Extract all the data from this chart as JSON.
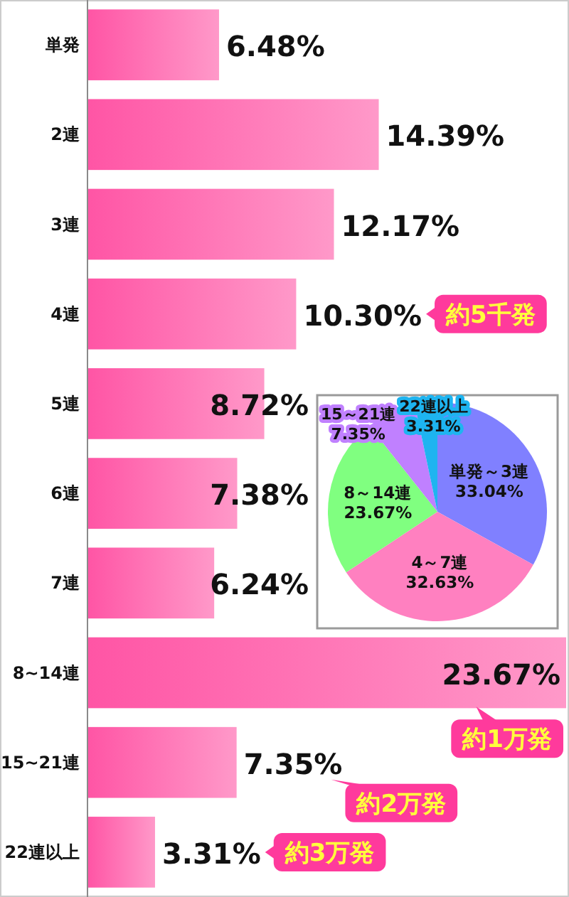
{
  "chart_data": [
    {
      "type": "bar",
      "orientation": "horizontal",
      "categories": [
        "単発",
        "2連",
        "3連",
        "4連",
        "5連",
        "6連",
        "7連",
        "8~14連",
        "15~21連",
        "22連以上"
      ],
      "values": [
        6.48,
        14.39,
        12.17,
        10.3,
        8.72,
        7.38,
        6.24,
        23.67,
        7.35,
        3.31
      ],
      "value_labels": [
        "6.48%",
        "14.39%",
        "12.17%",
        "10.30%",
        "8.72%",
        "7.38%",
        "6.24%",
        "23.67%",
        "7.35%",
        "3.31%"
      ],
      "color": "#ff55a5",
      "annotations": [
        "約5千発",
        "約1万発",
        "約2万発",
        "約3万発"
      ]
    },
    {
      "type": "pie",
      "categories": [
        "単発～3連",
        "4～7連",
        "8～14連",
        "15～21連",
        "22連以上"
      ],
      "values": [
        33.04,
        32.63,
        23.67,
        7.35,
        3.31
      ],
      "colors": [
        "#8080ff",
        "#ff80c0",
        "#80ff80",
        "#c080ff",
        "#1eb4f0"
      ],
      "value_labels": [
        "33.04%",
        "32.63%",
        "23.67%",
        "7.35%",
        "3.31%"
      ]
    }
  ]
}
